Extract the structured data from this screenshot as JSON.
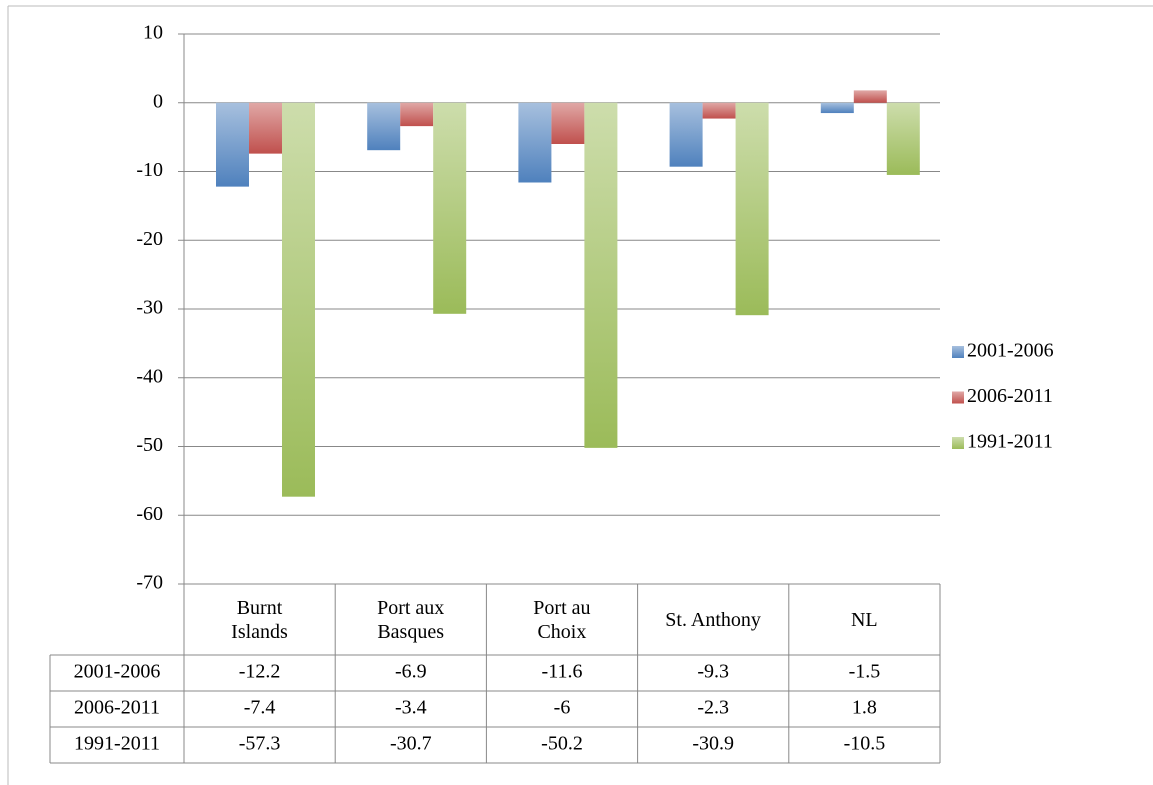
{
  "chart_data": {
    "type": "bar",
    "categories": [
      "Burnt\nIslands",
      "Port aux\nBasques",
      "Port au\nChoix",
      "St. Anthony",
      "NL"
    ],
    "series": [
      {
        "name": "2001-2006",
        "color": "#4f81bd",
        "values": [
          -12.2,
          -6.9,
          -11.6,
          -9.3,
          -1.5
        ]
      },
      {
        "name": "2006-2011",
        "color": "#c0504d",
        "values": [
          -7.4,
          -3.4,
          -6,
          -2.3,
          1.8
        ]
      },
      {
        "name": "1991-2011",
        "color": "#9bbb59",
        "values": [
          -57.3,
          -30.7,
          -50.2,
          -30.9,
          -10.5
        ]
      }
    ],
    "ylim": [
      -70,
      10
    ],
    "yticks": [
      10,
      0,
      -10,
      -20,
      -30,
      -40,
      -50,
      -60,
      -70
    ],
    "grid": true,
    "legend": "right",
    "data_table": true
  }
}
